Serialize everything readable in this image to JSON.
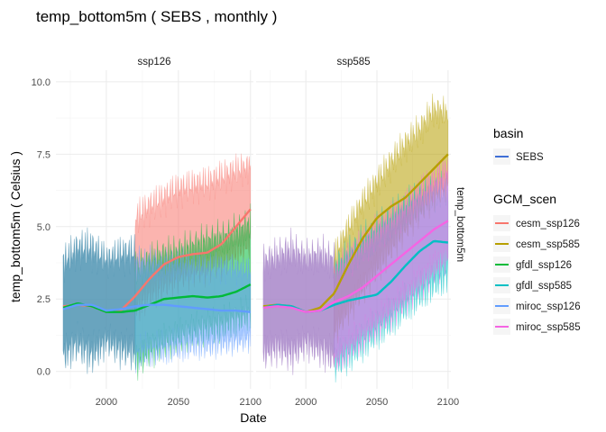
{
  "chart_data": {
    "type": "line",
    "title": "temp_bottom5m ( SEBS , monthly )",
    "xlabel": "Date",
    "ylabel": "temp_bottom5m ( Celsius )",
    "strip_right": "temp_bottom5m",
    "xlim": [
      1965,
      2102
    ],
    "ylim": [
      -0.6,
      10.4
    ],
    "x_ticks": [
      2000,
      2050,
      2100
    ],
    "y_ticks": [
      0.0,
      2.5,
      5.0,
      7.5,
      10.0
    ],
    "y_tick_labels": [
      "0.0",
      "2.5",
      "5.0",
      "7.5",
      "10.0"
    ],
    "grid": true,
    "legend_position": "right",
    "legend_basin": {
      "title": "basin",
      "items": [
        {
          "label": "SEBS",
          "color": "#3f6fd6"
        }
      ]
    },
    "legend_gcm": {
      "title": "GCM_scen",
      "items": [
        {
          "label": "cesm_ssp126",
          "color": "#f8766d"
        },
        {
          "label": "cesm_ssp585",
          "color": "#b79f00"
        },
        {
          "label": "gfdl_ssp126",
          "color": "#00ba38"
        },
        {
          "label": "gfdl_ssp585",
          "color": "#00bfc4"
        },
        {
          "label": "miroc_ssp126",
          "color": "#619cff"
        },
        {
          "label": "miroc_ssp585",
          "color": "#f564e3"
        }
      ]
    },
    "panels": [
      {
        "strip": "ssp126",
        "hindcast_color": "#4f94b3",
        "bands": [
          {
            "series": "cesm_ssp126",
            "color": "#f8766d",
            "x": [
              2020,
              2030,
              2040,
              2050,
              2060,
              2070,
              2080,
              2090,
              2100
            ],
            "low": [
              1.5,
              2.0,
              2.3,
              2.6,
              2.8,
              2.9,
              3.1,
              3.4,
              3.8
            ],
            "high": [
              6.0,
              6.4,
              6.7,
              7.0,
              7.1,
              7.2,
              7.4,
              7.6,
              7.7
            ]
          },
          {
            "series": "gfdl_ssp126",
            "color": "#00ba38",
            "x": [
              2020,
              2030,
              2040,
              2050,
              2060,
              2070,
              2080,
              2090,
              2100
            ],
            "low": [
              -0.4,
              0.0,
              0.3,
              0.5,
              0.7,
              0.8,
              0.9,
              1.1,
              1.3
            ],
            "high": [
              4.2,
              4.5,
              4.7,
              4.8,
              5.0,
              5.2,
              5.3,
              5.5,
              5.8
            ]
          },
          {
            "series": "miroc_ssp126",
            "color": "#619cff",
            "x": [
              2020,
              2030,
              2040,
              2050,
              2060,
              2070,
              2080,
              2090,
              2100
            ],
            "low": [
              -0.2,
              0.0,
              0.1,
              0.2,
              0.3,
              0.3,
              0.4,
              0.5,
              0.6
            ],
            "high": [
              4.5,
              4.4,
              4.3,
              4.4,
              4.3,
              4.2,
              4.2,
              4.1,
              4.0
            ]
          }
        ],
        "hindcast": {
          "x": [
            1970,
            1980,
            1990,
            2000,
            2010,
            2020
          ],
          "low": [
            -0.2,
            0.2,
            -0.3,
            0.4,
            0.0,
            -0.1
          ],
          "high": [
            4.5,
            5.0,
            5.1,
            4.5,
            4.8,
            4.9
          ]
        },
        "smooth": [
          {
            "series": "cesm_ssp126",
            "color": "#f8766d",
            "x": [
              1970,
              1980,
              1990,
              2000,
              2010,
              2020,
              2030,
              2040,
              2050,
              2060,
              2070,
              2080,
              2090,
              2100
            ],
            "y": [
              2.25,
              2.3,
              2.25,
              2.05,
              2.1,
              2.6,
              3.2,
              3.7,
              3.95,
              4.05,
              4.1,
              4.4,
              5.0,
              5.6
            ]
          },
          {
            "series": "gfdl_ssp126",
            "color": "#00ba38",
            "x": [
              1970,
              1980,
              1990,
              2000,
              2010,
              2020,
              2030,
              2040,
              2050,
              2060,
              2070,
              2080,
              2090,
              2100
            ],
            "y": [
              2.2,
              2.35,
              2.25,
              2.05,
              2.05,
              2.1,
              2.3,
              2.5,
              2.55,
              2.6,
              2.55,
              2.6,
              2.75,
              3.0
            ]
          },
          {
            "series": "miroc_ssp126",
            "color": "#619cff",
            "x": [
              1970,
              1980,
              1990,
              2000,
              2010,
              2020,
              2030,
              2040,
              2050,
              2060,
              2070,
              2080,
              2090,
              2100
            ],
            "y": [
              2.15,
              2.3,
              2.3,
              2.1,
              2.15,
              2.25,
              2.3,
              2.3,
              2.25,
              2.2,
              2.15,
              2.1,
              2.1,
              2.05
            ]
          }
        ]
      },
      {
        "strip": "ssp585",
        "hindcast_color": "#a886c9",
        "bands": [
          {
            "series": "cesm_ssp585",
            "color": "#b79f00",
            "x": [
              2020,
              2030,
              2040,
              2050,
              2060,
              2070,
              2080,
              2090,
              2100
            ],
            "low": [
              0.8,
              1.5,
              2.2,
              2.9,
              3.6,
              4.3,
              4.9,
              5.4,
              5.9
            ],
            "high": [
              4.6,
              5.6,
              6.5,
              7.2,
              7.9,
              8.5,
              9.0,
              9.7,
              9.5
            ]
          },
          {
            "series": "gfdl_ssp585",
            "color": "#00bfc4",
            "x": [
              2020,
              2030,
              2040,
              2050,
              2060,
              2070,
              2080,
              2090,
              2100
            ],
            "low": [
              -0.5,
              -0.2,
              0.2,
              0.6,
              1.0,
              1.5,
              1.9,
              2.3,
              2.6
            ],
            "high": [
              4.3,
              4.7,
              5.2,
              5.6,
              6.0,
              6.4,
              6.7,
              6.9,
              7.0
            ]
          },
          {
            "series": "miroc_ssp585",
            "color": "#f564e3",
            "x": [
              2020,
              2030,
              2040,
              2050,
              2060,
              2070,
              2080,
              2090,
              2100
            ],
            "low": [
              -0.3,
              0.1,
              0.5,
              0.9,
              1.3,
              1.8,
              2.3,
              2.8,
              3.3
            ],
            "high": [
              4.0,
              4.6,
              5.1,
              5.6,
              6.0,
              6.4,
              6.9,
              7.3,
              7.7
            ]
          }
        ],
        "hindcast": {
          "x": [
            1970,
            1980,
            1990,
            2000,
            2010,
            2020
          ],
          "low": [
            -0.1,
            0.1,
            -0.2,
            0.3,
            0.0,
            -0.3
          ],
          "high": [
            4.5,
            4.7,
            5.0,
            4.6,
            4.8,
            4.6
          ]
        },
        "smooth": [
          {
            "series": "cesm_ssp585",
            "color": "#b79f00",
            "x": [
              1970,
              1980,
              1990,
              2000,
              2010,
              2020,
              2030,
              2040,
              2050,
              2060,
              2070,
              2080,
              2090,
              2100
            ],
            "y": [
              2.25,
              2.3,
              2.25,
              2.05,
              2.2,
              2.7,
              3.7,
              4.6,
              5.3,
              5.7,
              6.0,
              6.5,
              7.0,
              7.5
            ]
          },
          {
            "series": "gfdl_ssp585",
            "color": "#00bfc4",
            "x": [
              1970,
              1980,
              1990,
              2000,
              2010,
              2020,
              2030,
              2040,
              2050,
              2060,
              2070,
              2080,
              2090,
              2100
            ],
            "y": [
              2.2,
              2.3,
              2.25,
              2.05,
              2.1,
              2.3,
              2.45,
              2.55,
              2.65,
              3.1,
              3.65,
              4.15,
              4.5,
              4.45
            ]
          },
          {
            "series": "miroc_ssp585",
            "color": "#f564e3",
            "x": [
              1970,
              1980,
              1990,
              2000,
              2010,
              2020,
              2030,
              2040,
              2050,
              2060,
              2070,
              2080,
              2090,
              2100
            ],
            "y": [
              2.2,
              2.25,
              2.2,
              2.05,
              2.1,
              2.4,
              2.6,
              2.9,
              3.3,
              3.7,
              4.1,
              4.5,
              4.9,
              5.2
            ]
          }
        ]
      }
    ]
  }
}
